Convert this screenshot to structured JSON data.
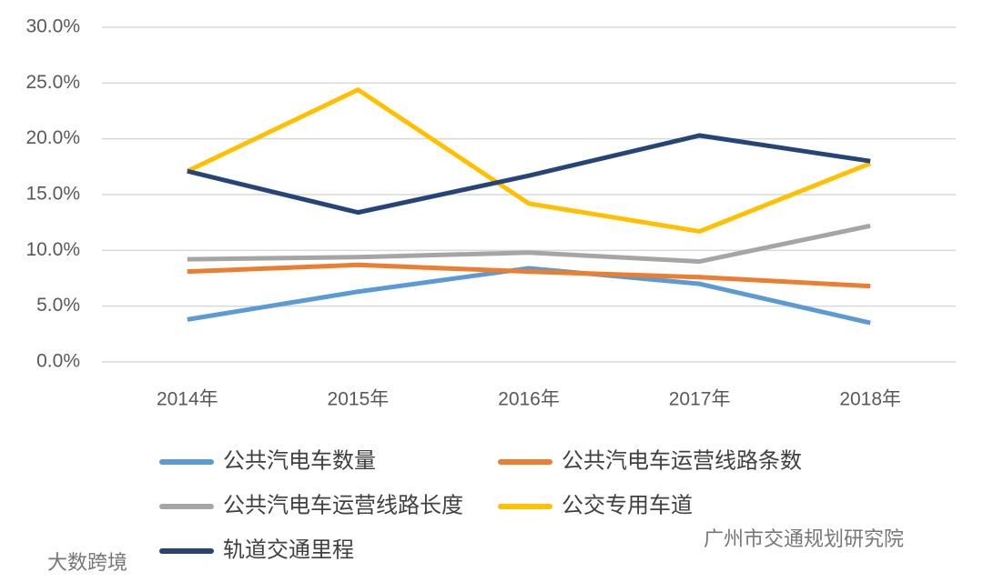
{
  "chart_data": {
    "type": "line",
    "categories": [
      "2014年",
      "2015年",
      "2016年",
      "2017年",
      "2018年"
    ],
    "series": [
      {
        "name": "公共汽电车数量",
        "color": "#5b9bd5",
        "values": [
          3.8,
          6.3,
          8.4,
          7.0,
          3.5
        ]
      },
      {
        "name": "公共汽电车运营线路条数",
        "color": "#ed7d31",
        "values": [
          8.1,
          8.7,
          8.1,
          7.6,
          6.8
        ]
      },
      {
        "name": "公共汽电车运营线路长度",
        "color": "#a5a5a5",
        "values": [
          9.2,
          9.4,
          9.8,
          9.0,
          12.2
        ]
      },
      {
        "name": "公交专用车道",
        "color": "#ffc000",
        "values": [
          17.1,
          24.4,
          14.2,
          11.7,
          17.8
        ]
      },
      {
        "name": "轨道交通里程",
        "color": "#264478",
        "values": [
          17.1,
          13.4,
          16.7,
          20.3,
          18.0
        ]
      }
    ],
    "ylim": [
      0,
      30
    ],
    "yticks": [
      {
        "value": 0,
        "label": "0.0%"
      },
      {
        "value": 5,
        "label": "5.0%"
      },
      {
        "value": 10,
        "label": "10.0%"
      },
      {
        "value": 15,
        "label": "15.0%"
      },
      {
        "value": 20,
        "label": "20.0%"
      },
      {
        "value": 25,
        "label": "25.0%"
      },
      {
        "value": 30,
        "label": "30.0%"
      }
    ],
    "grid": true,
    "legend": "bottom",
    "watermarks": [
      "广州市交通规划研究院",
      "大数跨境"
    ]
  }
}
